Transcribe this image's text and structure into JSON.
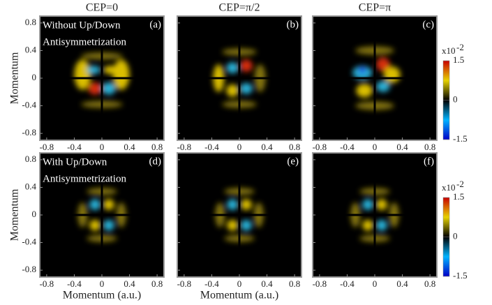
{
  "column_titles": [
    "CEP=0",
    "CEP=π/2",
    "CEP=π"
  ],
  "annotations": [
    [
      "Without Up/Down",
      "Antisymmetrization"
    ],
    [
      "With Up/Down",
      "Antisymmetrization"
    ]
  ],
  "chart_data": [
    {
      "type": "heatmap",
      "panel": "(a)",
      "ylabel": "Momentum",
      "xlim": [
        -0.9,
        0.9
      ],
      "ylim": [
        -0.9,
        0.9
      ],
      "xticks": [
        -0.8,
        -0.4,
        0,
        0.4,
        0.8
      ],
      "yticks": [
        -0.8,
        -0.4,
        0,
        0.4,
        0.8
      ]
    },
    {
      "type": "heatmap",
      "panel": "(b)",
      "xlim": [
        -0.9,
        0.9
      ],
      "ylim": [
        -0.9,
        0.9
      ],
      "xticks": [
        -0.8,
        -0.4,
        0,
        0.4,
        0.8
      ],
      "yticks": [
        -0.8,
        -0.4,
        0,
        0.4,
        0.8
      ]
    },
    {
      "type": "heatmap",
      "panel": "(c)",
      "xlim": [
        -0.9,
        0.9
      ],
      "ylim": [
        -0.9,
        0.9
      ],
      "xticks": [
        -0.8,
        -0.4,
        0,
        0.4,
        0.8
      ],
      "yticks": [
        -0.8,
        -0.4,
        0,
        0.4,
        0.8
      ]
    },
    {
      "type": "heatmap",
      "panel": "(d)",
      "ylabel": "Momentum",
      "xlabel": "Momentum (a.u.)",
      "xlim": [
        -0.9,
        0.9
      ],
      "ylim": [
        -0.9,
        0.9
      ],
      "xticks": [
        -0.8,
        -0.4,
        0,
        0.4,
        0.8
      ],
      "yticks": [
        -0.8,
        -0.4,
        0,
        0.4,
        0.8
      ]
    },
    {
      "type": "heatmap",
      "panel": "(e)",
      "xlabel": "Momentum (a.u.)",
      "xlim": [
        -0.9,
        0.9
      ],
      "ylim": [
        -0.9,
        0.9
      ],
      "xticks": [
        -0.8,
        -0.4,
        0,
        0.4,
        0.8
      ],
      "yticks": [
        -0.8,
        -0.4,
        0,
        0.4,
        0.8
      ]
    },
    {
      "type": "heatmap",
      "panel": "(f)",
      "xlim": [
        -0.9,
        0.9
      ],
      "ylim": [
        -0.9,
        0.9
      ],
      "xticks": [
        -0.8,
        -0.4,
        0,
        0.4,
        0.8
      ],
      "yticks": [
        -0.8,
        -0.4,
        0,
        0.4,
        0.8
      ]
    }
  ],
  "colorbars": [
    {
      "clim": [
        -1.5,
        1.5
      ],
      "ticks": [
        -1.5,
        0,
        1.5
      ],
      "multiplier": "x10",
      "exponent": "-2"
    },
    {
      "clim": [
        -1.5,
        1.5
      ],
      "ticks": [
        -1.5,
        0,
        1.5
      ],
      "multiplier": "x10",
      "exponent": "-2"
    }
  ]
}
